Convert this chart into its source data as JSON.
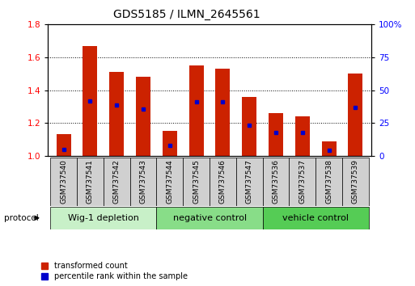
{
  "title": "GDS5185 / ILMN_2645561",
  "samples": [
    "GSM737540",
    "GSM737541",
    "GSM737542",
    "GSM737543",
    "GSM737544",
    "GSM737545",
    "GSM737546",
    "GSM737547",
    "GSM737536",
    "GSM737537",
    "GSM737538",
    "GSM737539"
  ],
  "transformed_count": [
    1.13,
    1.67,
    1.51,
    1.48,
    1.15,
    1.55,
    1.53,
    1.36,
    1.26,
    1.24,
    1.09,
    1.5
  ],
  "percentile_rank_pct": [
    5,
    41.5,
    38.5,
    35.5,
    8,
    41,
    41,
    23,
    18,
    18,
    4,
    37
  ],
  "groups": [
    {
      "label": "Wig-1 depletion",
      "start": 0,
      "end": 3,
      "color": "#c8f0c8"
    },
    {
      "label": "negative control",
      "start": 4,
      "end": 7,
      "color": "#88dd88"
    },
    {
      "label": "vehicle control",
      "start": 8,
      "end": 11,
      "color": "#55cc55"
    }
  ],
  "ylim_left": [
    1.0,
    1.8
  ],
  "ylim_right": [
    0,
    100
  ],
  "yticks_left": [
    1.0,
    1.2,
    1.4,
    1.6,
    1.8
  ],
  "yticks_right": [
    0,
    25,
    50,
    75,
    100
  ],
  "bar_color": "#cc2200",
  "percentile_color": "#0000cc",
  "bar_width": 0.55,
  "title_fontsize": 10,
  "tick_fontsize": 7.5,
  "legend_labels": [
    "transformed count",
    "percentile rank within the sample"
  ],
  "group_label_fontsize": 8,
  "sample_fontsize": 6.5
}
